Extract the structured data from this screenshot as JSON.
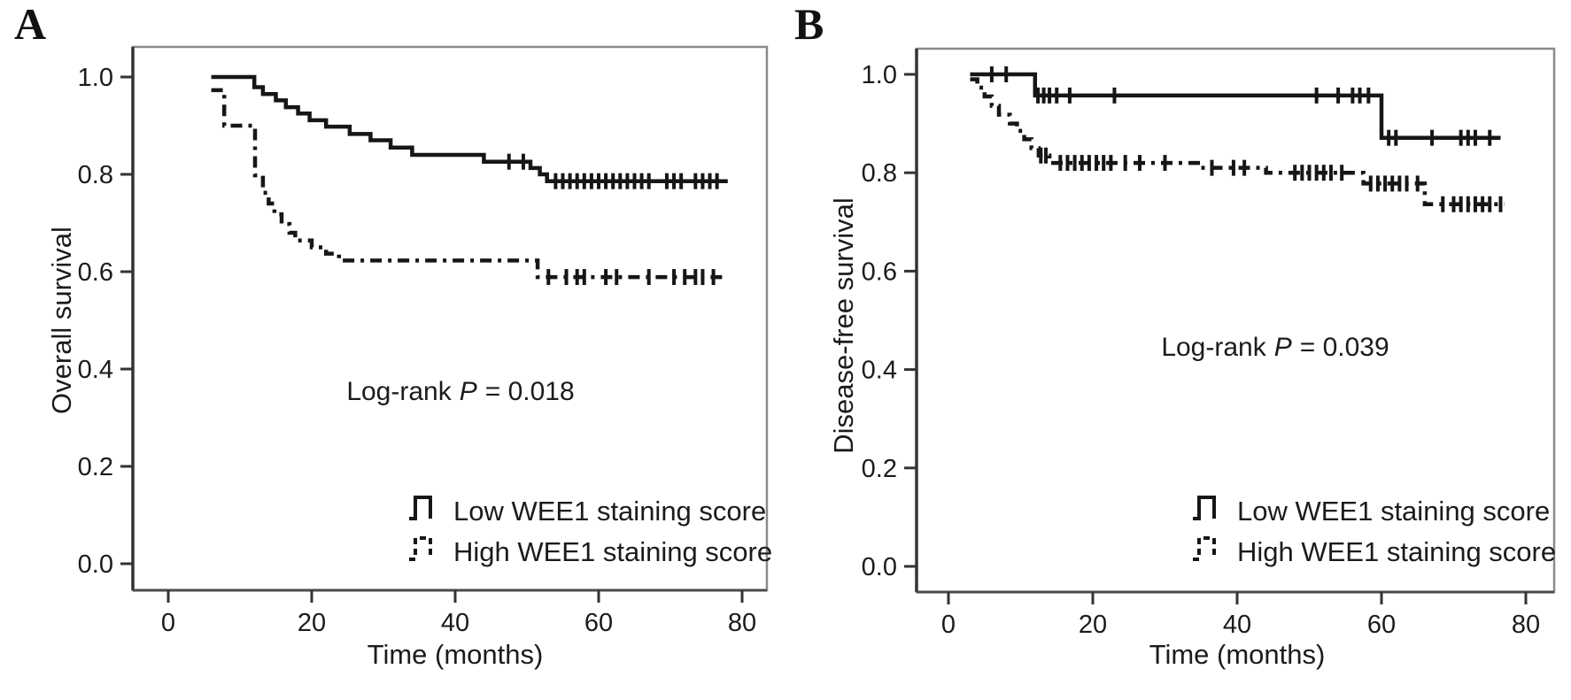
{
  "figure": {
    "panels": [
      {
        "letter": "A",
        "y_axis_title": "Overall survival",
        "x_axis_title": "Time (months)",
        "x_tick_labels": [
          "0",
          "20",
          "40",
          "60",
          "80"
        ],
        "y_tick_labels": [
          "0.0",
          "0.2",
          "0.4",
          "0.6",
          "0.8",
          "1.0"
        ],
        "annotation": {
          "pre": "Log-rank",
          "italic": "P",
          "post": "= 0.018"
        },
        "legend": [
          {
            "label": "Low WEE1 staining score",
            "style": "solid"
          },
          {
            "label": "High WEE1 staining score",
            "style": "dash-dot"
          }
        ]
      },
      {
        "letter": "B",
        "y_axis_title": "Disease-free survival",
        "x_axis_title": "Time (months)",
        "x_tick_labels": [
          "0",
          "20",
          "40",
          "60",
          "80"
        ],
        "y_tick_labels": [
          "0.0",
          "0.2",
          "0.4",
          "0.6",
          "0.8",
          "1.0"
        ],
        "annotation": {
          "pre": "Log-rank",
          "italic": "P",
          "post": "= 0.039"
        },
        "legend": [
          {
            "label": "Low WEE1 staining score",
            "style": "solid"
          },
          {
            "label": "High WEE1 staining score",
            "style": "dash-dot"
          }
        ]
      }
    ]
  },
  "chart_data": [
    {
      "type": "line",
      "subtype": "kaplan-meier-step",
      "panel": "A",
      "title": "",
      "xlabel": "Time (months)",
      "ylabel": "Overall survival",
      "xticks": [
        0,
        20,
        40,
        60,
        80
      ],
      "yticks": [
        0.0,
        0.2,
        0.4,
        0.6,
        0.8,
        1.0
      ],
      "xlim": [
        0,
        80
      ],
      "ylim": [
        0.0,
        1.0
      ],
      "grid": false,
      "legend_position": "lower right",
      "annotation_text": "Log-rank P = 0.018",
      "line_color": "#161616",
      "series": [
        {
          "name": "Low WEE1 staining score",
          "line_style": "solid",
          "steps": [
            [
              6,
              1.0
            ],
            [
              12,
              0.979
            ],
            [
              13.2,
              0.965
            ],
            [
              15,
              0.952
            ],
            [
              16.4,
              0.938
            ],
            [
              18.1,
              0.925
            ],
            [
              19.7,
              0.911
            ],
            [
              22,
              0.898
            ],
            [
              25.3,
              0.883
            ],
            [
              28.2,
              0.87
            ],
            [
              31,
              0.855
            ],
            [
              34,
              0.84
            ],
            [
              44,
              0.826
            ],
            [
              50.5,
              0.813
            ],
            [
              51.8,
              0.8
            ],
            [
              52.8,
              0.786
            ],
            [
              78,
              0.786
            ]
          ],
          "censor_marks": [
            [
              47.5,
              0.826
            ],
            [
              49.5,
              0.826
            ],
            [
              54,
              0.786
            ],
            [
              55,
              0.786
            ],
            [
              56,
              0.786
            ],
            [
              57,
              0.786
            ],
            [
              58,
              0.786
            ],
            [
              59,
              0.786
            ],
            [
              60,
              0.786
            ],
            [
              61,
              0.786
            ],
            [
              62,
              0.786
            ],
            [
              63,
              0.786
            ],
            [
              64,
              0.786
            ],
            [
              65,
              0.786
            ],
            [
              66,
              0.786
            ],
            [
              67,
              0.786
            ],
            [
              69.5,
              0.786
            ],
            [
              70.5,
              0.786
            ],
            [
              71.5,
              0.786
            ],
            [
              73.5,
              0.786
            ],
            [
              74.5,
              0.786
            ],
            [
              75.5,
              0.786
            ],
            [
              76.5,
              0.786
            ]
          ]
        },
        {
          "name": "High WEE1 staining score",
          "line_style": "dash-dot",
          "steps": [
            [
              6,
              0.973
            ],
            [
              7.8,
              0.9
            ],
            [
              12.1,
              0.798
            ],
            [
              13.2,
              0.762
            ],
            [
              14,
              0.74
            ],
            [
              14.8,
              0.718
            ],
            [
              15.8,
              0.698
            ],
            [
              16.9,
              0.68
            ],
            [
              17.7,
              0.664
            ],
            [
              20,
              0.65
            ],
            [
              22,
              0.637
            ],
            [
              23.8,
              0.623
            ],
            [
              51.5,
              0.589
            ],
            [
              78,
              0.589
            ]
          ],
          "censor_marks": [
            [
              53,
              0.589
            ],
            [
              55.5,
              0.589
            ],
            [
              57,
              0.589
            ],
            [
              58,
              0.589
            ],
            [
              61,
              0.589
            ],
            [
              62.5,
              0.589
            ],
            [
              67,
              0.589
            ],
            [
              70.5,
              0.589
            ],
            [
              72,
              0.589
            ],
            [
              73.5,
              0.589
            ],
            [
              74.5,
              0.589
            ],
            [
              76,
              0.589
            ]
          ]
        }
      ]
    },
    {
      "type": "line",
      "subtype": "kaplan-meier-step",
      "panel": "B",
      "title": "",
      "xlabel": "Time (months)",
      "ylabel": "Disease-free survival",
      "xticks": [
        0,
        20,
        40,
        60,
        80
      ],
      "yticks": [
        0.0,
        0.2,
        0.4,
        0.6,
        0.8,
        1.0
      ],
      "xlim": [
        0,
        80
      ],
      "ylim": [
        0.0,
        1.0
      ],
      "grid": false,
      "legend_position": "lower right",
      "annotation_text": "Log-rank P = 0.039",
      "line_color": "#161616",
      "series": [
        {
          "name": "Low WEE1 staining score",
          "line_style": "solid",
          "steps": [
            [
              3,
              1.0
            ],
            [
              12,
              0.957
            ],
            [
              60,
              0.871
            ],
            [
              76.5,
              0.871
            ]
          ],
          "censor_marks": [
            [
              6,
              1.0
            ],
            [
              8,
              1.0
            ],
            [
              12.4,
              0.957
            ],
            [
              13.2,
              0.957
            ],
            [
              14,
              0.957
            ],
            [
              15,
              0.957
            ],
            [
              16.8,
              0.957
            ],
            [
              23,
              0.957
            ],
            [
              51,
              0.957
            ],
            [
              54,
              0.957
            ],
            [
              56,
              0.957
            ],
            [
              57,
              0.957
            ],
            [
              58.2,
              0.957
            ],
            [
              61,
              0.871
            ],
            [
              62,
              0.871
            ],
            [
              67,
              0.871
            ],
            [
              71,
              0.871
            ],
            [
              72,
              0.871
            ],
            [
              73,
              0.871
            ],
            [
              75,
              0.871
            ]
          ]
        },
        {
          "name": "High WEE1 staining score",
          "line_style": "dash-dot",
          "steps": [
            [
              3,
              0.99
            ],
            [
              4,
              0.973
            ],
            [
              5,
              0.955
            ],
            [
              6,
              0.936
            ],
            [
              7,
              0.918
            ],
            [
              8.5,
              0.9
            ],
            [
              9.5,
              0.885
            ],
            [
              10.5,
              0.868
            ],
            [
              11.5,
              0.85
            ],
            [
              12.5,
              0.835
            ],
            [
              14,
              0.82
            ],
            [
              35,
              0.81
            ],
            [
              44,
              0.8
            ],
            [
              57.5,
              0.778
            ],
            [
              66,
              0.736
            ],
            [
              77,
              0.736
            ]
          ],
          "censor_marks": [
            [
              12.8,
              0.835
            ],
            [
              13.5,
              0.835
            ],
            [
              15.5,
              0.82
            ],
            [
              16.5,
              0.82
            ],
            [
              17.5,
              0.82
            ],
            [
              18.5,
              0.82
            ],
            [
              19.5,
              0.82
            ],
            [
              20.5,
              0.82
            ],
            [
              21.5,
              0.82
            ],
            [
              22.5,
              0.82
            ],
            [
              24.5,
              0.82
            ],
            [
              26.5,
              0.82
            ],
            [
              30,
              0.82
            ],
            [
              36.5,
              0.81
            ],
            [
              39.5,
              0.81
            ],
            [
              41,
              0.81
            ],
            [
              48,
              0.8
            ],
            [
              49,
              0.8
            ],
            [
              50,
              0.8
            ],
            [
              51,
              0.8
            ],
            [
              52,
              0.8
            ],
            [
              53,
              0.8
            ],
            [
              54.5,
              0.8
            ],
            [
              58.5,
              0.778
            ],
            [
              59.5,
              0.778
            ],
            [
              60.5,
              0.778
            ],
            [
              61.5,
              0.778
            ],
            [
              62.5,
              0.778
            ],
            [
              63.5,
              0.778
            ],
            [
              65,
              0.778
            ],
            [
              68.5,
              0.736
            ],
            [
              70,
              0.736
            ],
            [
              71,
              0.736
            ],
            [
              72,
              0.736
            ],
            [
              73,
              0.736
            ],
            [
              74,
              0.736
            ],
            [
              75,
              0.736
            ],
            [
              76.5,
              0.736
            ]
          ]
        }
      ]
    }
  ]
}
